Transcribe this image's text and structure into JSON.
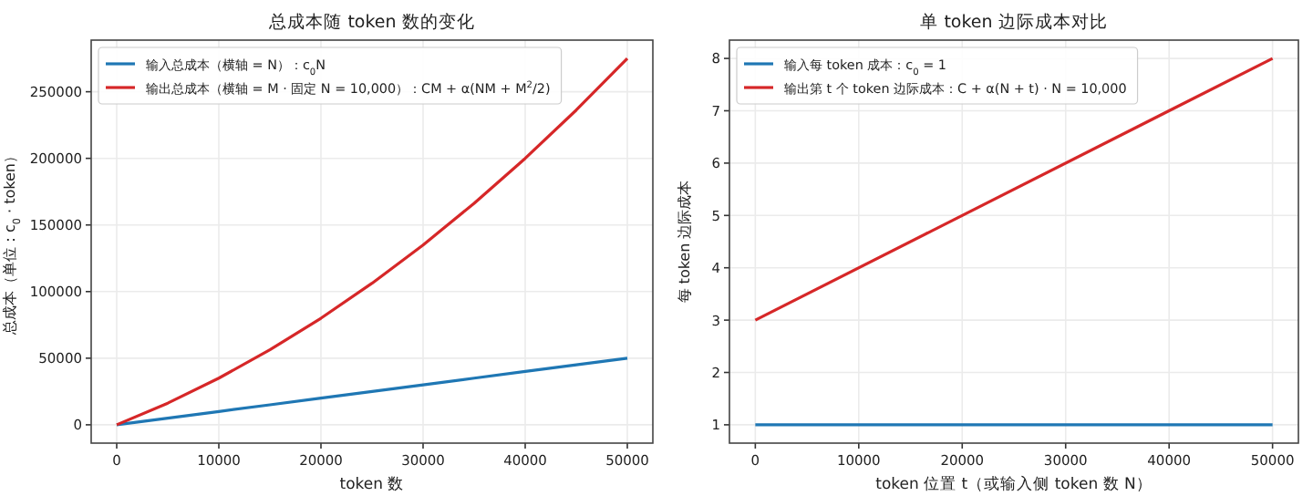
{
  "chart_data": [
    {
      "type": "line",
      "title": "总成本随 token 数的变化",
      "xlabel": "token 数",
      "ylabel": "总成本（单位：c$_{0}$ · token）",
      "x": [
        0,
        5000,
        10000,
        15000,
        20000,
        25000,
        30000,
        35000,
        40000,
        45000,
        50000
      ],
      "xlim": [
        -2500,
        52500
      ],
      "ylim": [
        -13750,
        288750
      ],
      "xticks": [
        0,
        10000,
        20000,
        30000,
        40000,
        50000
      ],
      "yticks": [
        0,
        50000,
        100000,
        150000,
        200000,
        250000
      ],
      "grid": true,
      "legend": "top left",
      "series": [
        {
          "name": "输入总成本（横轴 = N）：c$_{0}$N",
          "color": "#1f77b4",
          "values": [
            0,
            5000,
            10000,
            15000,
            20000,
            25000,
            30000,
            35000,
            40000,
            45000,
            50000
          ]
        },
        {
          "name": "输出总成本（横轴 = M · 固定 N = 10,000）：CM + α(NM + M$^{2}$/2)",
          "color": "#d62728",
          "values": [
            0,
            16250,
            35000,
            56250,
            80000,
            106250,
            135000,
            166250,
            200000,
            236250,
            275000
          ]
        }
      ]
    },
    {
      "type": "line",
      "title": "单 token 边际成本对比",
      "xlabel": "token 位置 t（或输入侧 token 数 N）",
      "ylabel": "每 token 边际成本",
      "x": [
        0,
        50000
      ],
      "xlim": [
        -2500,
        52500
      ],
      "ylim": [
        0.65,
        8.35
      ],
      "xticks": [
        0,
        10000,
        20000,
        30000,
        40000,
        50000
      ],
      "yticks": [
        1,
        2,
        3,
        4,
        5,
        6,
        7,
        8
      ],
      "grid": true,
      "legend": "top left",
      "series": [
        {
          "name": "输入每 token 成本：c$_{0}$ = 1",
          "color": "#1f77b4",
          "values": [
            1,
            1
          ]
        },
        {
          "name": "输出第 t 个 token 边际成本：C + α(N + t) · N = 10,000",
          "color": "#d62728",
          "values": [
            3,
            8
          ]
        }
      ]
    }
  ]
}
